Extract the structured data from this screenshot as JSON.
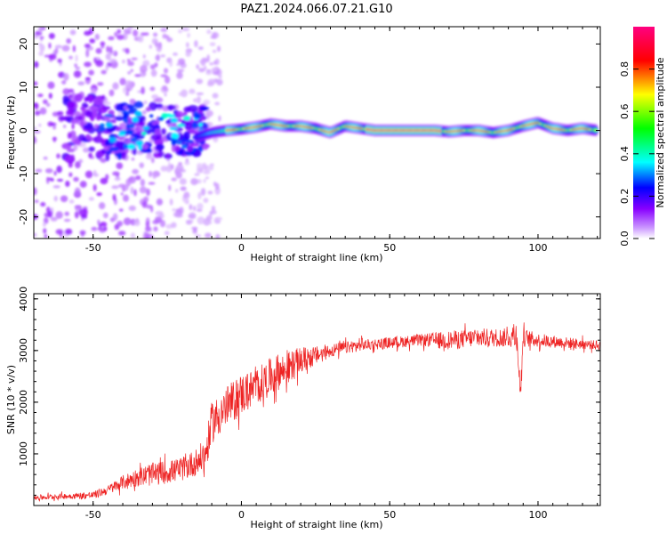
{
  "title": "PAZ1.2024.066.07.21.G10",
  "chart_data": [
    {
      "type": "heatmap",
      "xlabel": "Height of straight line (km)",
      "ylabel": "Frequency (Hz)",
      "xlim": [
        -70,
        121
      ],
      "ylim": [
        -25,
        24
      ],
      "xticks": [
        -50,
        0,
        50,
        100
      ],
      "yticks": [
        -20,
        -10,
        0,
        10,
        20
      ],
      "colorbar": {
        "label": "Normalized spectral amplitude",
        "range": [
          0,
          1
        ],
        "ticks": [
          "0.0",
          "0.2",
          "0.4",
          "0.6",
          "0.8"
        ],
        "tick_values": [
          0,
          0.2,
          0.4,
          0.6,
          0.8
        ],
        "colors": [
          "#ffffff",
          "#8800ff",
          "#0000ff",
          "#00ffff",
          "#00ff00",
          "#ffff00",
          "#ff0000",
          "#ff0080"
        ]
      },
      "ridge": {
        "x": [
          -15,
          -10,
          -5,
          0,
          5,
          10,
          15,
          20,
          25,
          30,
          35,
          40,
          45,
          50,
          55,
          60,
          65,
          70,
          75,
          80,
          85,
          90,
          95,
          100,
          105,
          110,
          115,
          120
        ],
        "y": [
          -1.5,
          -0.5,
          0,
          0.3,
          0.8,
          1.5,
          1,
          1,
          0.5,
          -0.5,
          1,
          0.5,
          0,
          0,
          0,
          0,
          0,
          -0.3,
          0,
          0,
          -0.5,
          0,
          1,
          1.8,
          0.5,
          0,
          0.5,
          0
        ]
      },
      "noise_region": {
        "x_range": [
          -70,
          -15
        ],
        "y_range": [
          -25,
          24
        ]
      }
    },
    {
      "type": "line",
      "xlabel": "Height of straight line (km)",
      "ylabel": "SNR (10 * v/v)",
      "xlim": [
        -70,
        121
      ],
      "ylim": [
        0,
        4100
      ],
      "xticks": [
        -50,
        0,
        50,
        100
      ],
      "yticks": [
        1000,
        2000,
        3000,
        4000
      ],
      "color": "#ee2222",
      "series": [
        {
          "x": [
            -70,
            -60,
            -50,
            -45,
            -40,
            -35,
            -30,
            -25,
            -20,
            -15,
            -12,
            -10,
            -5,
            0,
            5,
            10,
            15,
            20,
            25,
            30,
            35,
            40,
            50,
            60,
            70,
            80,
            90,
            93,
            94,
            95,
            100,
            110,
            120
          ],
          "values": [
            150,
            180,
            200,
            300,
            450,
            550,
            600,
            650,
            700,
            850,
            1000,
            1600,
            1900,
            2150,
            2300,
            2500,
            2650,
            2800,
            2900,
            3000,
            3050,
            3100,
            3150,
            3200,
            3200,
            3250,
            3250,
            3300,
            2100,
            3250,
            3200,
            3150,
            3100
          ],
          "noise_amplitude": [
            60,
            60,
            80,
            100,
            150,
            200,
            250,
            250,
            250,
            300,
            350,
            450,
            450,
            450,
            400,
            400,
            350,
            300,
            200,
            150,
            130,
            120,
            120,
            130,
            200,
            200,
            200,
            350,
            300,
            200,
            150,
            120,
            100
          ]
        }
      ]
    }
  ]
}
